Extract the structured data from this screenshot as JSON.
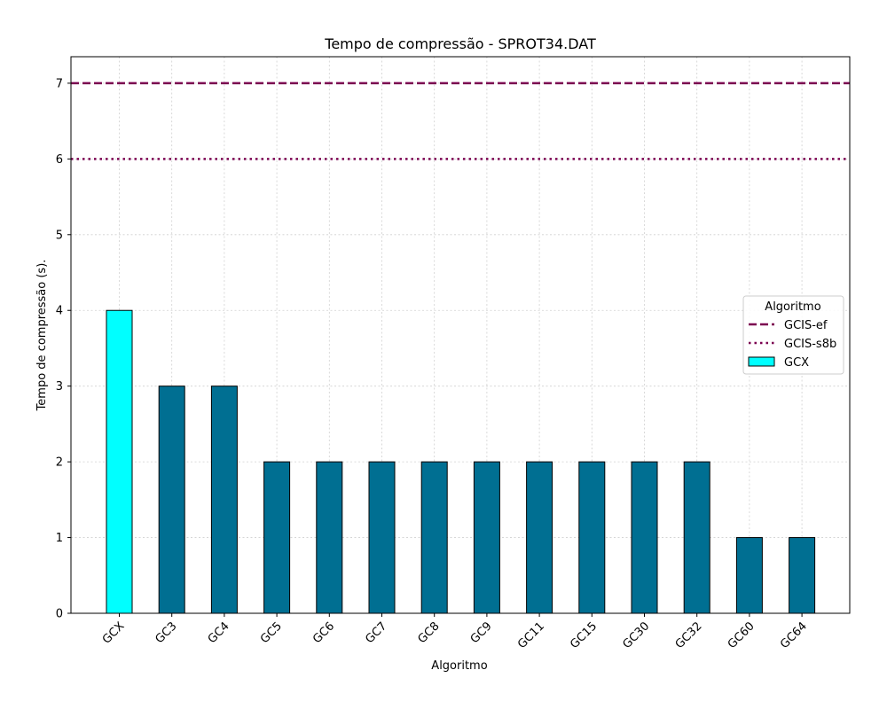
{
  "chart_data": {
    "type": "bar",
    "title": "Tempo de compressão -  SPROT34.DAT",
    "xlabel": "Algoritmo",
    "ylabel": "Tempo de compressão (s).",
    "categories": [
      "GCX",
      "GC3",
      "GC4",
      "GC5",
      "GC6",
      "GC7",
      "GC8",
      "GC9",
      "GC11",
      "GC15",
      "GC30",
      "GC32",
      "GC60",
      "GC64"
    ],
    "values": [
      4,
      3,
      3,
      2,
      2,
      2,
      2,
      2,
      2,
      2,
      2,
      2,
      1,
      1
    ],
    "ylim": [
      0,
      7.35
    ],
    "yticks": [
      "0",
      "1",
      "2",
      "3",
      "4",
      "5",
      "6",
      "7"
    ],
    "grid": true,
    "bar_colors": {
      "highlight": "#00ffff",
      "default": "#006f92"
    },
    "highlight_category": "GCX",
    "reference_lines": [
      {
        "name": "GCIS-ef",
        "value": 7,
        "style": "dashed",
        "color": "#7b0050"
      },
      {
        "name": "GCIS-s8b",
        "value": 6,
        "style": "dotted",
        "color": "#7b0050"
      }
    ],
    "legend": {
      "title": "Algoritmo",
      "placement": "center-right",
      "entries": [
        {
          "label": "GCIS-ef",
          "kind": "dashed-line",
          "color": "#7b0050"
        },
        {
          "label": "GCIS-s8b",
          "kind": "dotted-line",
          "color": "#7b0050"
        },
        {
          "label": "GCX",
          "kind": "patch",
          "color": "#00ffff"
        }
      ]
    }
  }
}
